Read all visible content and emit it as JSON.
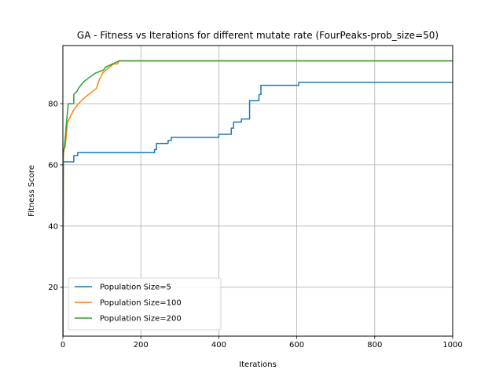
{
  "chart_data": {
    "type": "line",
    "title": "GA - Fitness vs Iterations for different mutate rate (FourPeaks-prob_size=50)",
    "xlabel": "Iterations",
    "ylabel": "Fitness Score",
    "xlim": [
      0,
      1000
    ],
    "ylim": [
      4,
      99
    ],
    "x_ticks": [
      0,
      200,
      400,
      600,
      800,
      1000
    ],
    "y_ticks": [
      20,
      40,
      60,
      80
    ],
    "grid": true,
    "legend_position": "lower-left",
    "series": [
      {
        "name": "Population Size=5",
        "color": "#1f77b4",
        "points": [
          [
            0,
            4
          ],
          [
            1,
            61
          ],
          [
            28,
            61
          ],
          [
            28,
            63
          ],
          [
            38,
            63
          ],
          [
            38,
            64
          ],
          [
            235,
            64
          ],
          [
            235,
            65
          ],
          [
            240,
            65
          ],
          [
            240,
            67
          ],
          [
            270,
            67
          ],
          [
            270,
            68
          ],
          [
            278,
            68
          ],
          [
            278,
            69
          ],
          [
            400,
            69
          ],
          [
            400,
            70
          ],
          [
            432,
            70
          ],
          [
            432,
            72
          ],
          [
            438,
            72
          ],
          [
            438,
            74
          ],
          [
            458,
            74
          ],
          [
            458,
            75
          ],
          [
            479,
            75
          ],
          [
            479,
            81
          ],
          [
            503,
            81
          ],
          [
            503,
            83
          ],
          [
            508,
            83
          ],
          [
            508,
            86
          ],
          [
            605,
            86
          ],
          [
            605,
            87
          ],
          [
            1000,
            87
          ]
        ]
      },
      {
        "name": "Population Size=100",
        "color": "#ff7f0e",
        "points": [
          [
            0,
            4
          ],
          [
            1,
            63
          ],
          [
            3,
            65
          ],
          [
            6,
            66
          ],
          [
            9,
            70
          ],
          [
            12,
            74
          ],
          [
            16,
            75
          ],
          [
            20,
            76
          ],
          [
            24,
            77
          ],
          [
            28,
            78
          ],
          [
            34,
            79
          ],
          [
            40,
            80
          ],
          [
            48,
            81
          ],
          [
            56,
            82
          ],
          [
            66,
            83
          ],
          [
            76,
            84
          ],
          [
            86,
            85
          ],
          [
            94,
            88
          ],
          [
            98,
            89
          ],
          [
            102,
            90
          ],
          [
            110,
            91
          ],
          [
            120,
            92
          ],
          [
            130,
            93
          ],
          [
            140,
            93
          ],
          [
            145,
            94
          ],
          [
            1000,
            94
          ]
        ]
      },
      {
        "name": "Population Size=200",
        "color": "#2ca02c",
        "points": [
          [
            0,
            4
          ],
          [
            1,
            64
          ],
          [
            4,
            66
          ],
          [
            7,
            70
          ],
          [
            10,
            75
          ],
          [
            14,
            80
          ],
          [
            28,
            80
          ],
          [
            28,
            83
          ],
          [
            36,
            84
          ],
          [
            40,
            85
          ],
          [
            46,
            86
          ],
          [
            52,
            87
          ],
          [
            62,
            88
          ],
          [
            72,
            89
          ],
          [
            84,
            90
          ],
          [
            104,
            91
          ],
          [
            110,
            92
          ],
          [
            128,
            93
          ],
          [
            144,
            94
          ],
          [
            1000,
            94
          ]
        ]
      }
    ]
  }
}
